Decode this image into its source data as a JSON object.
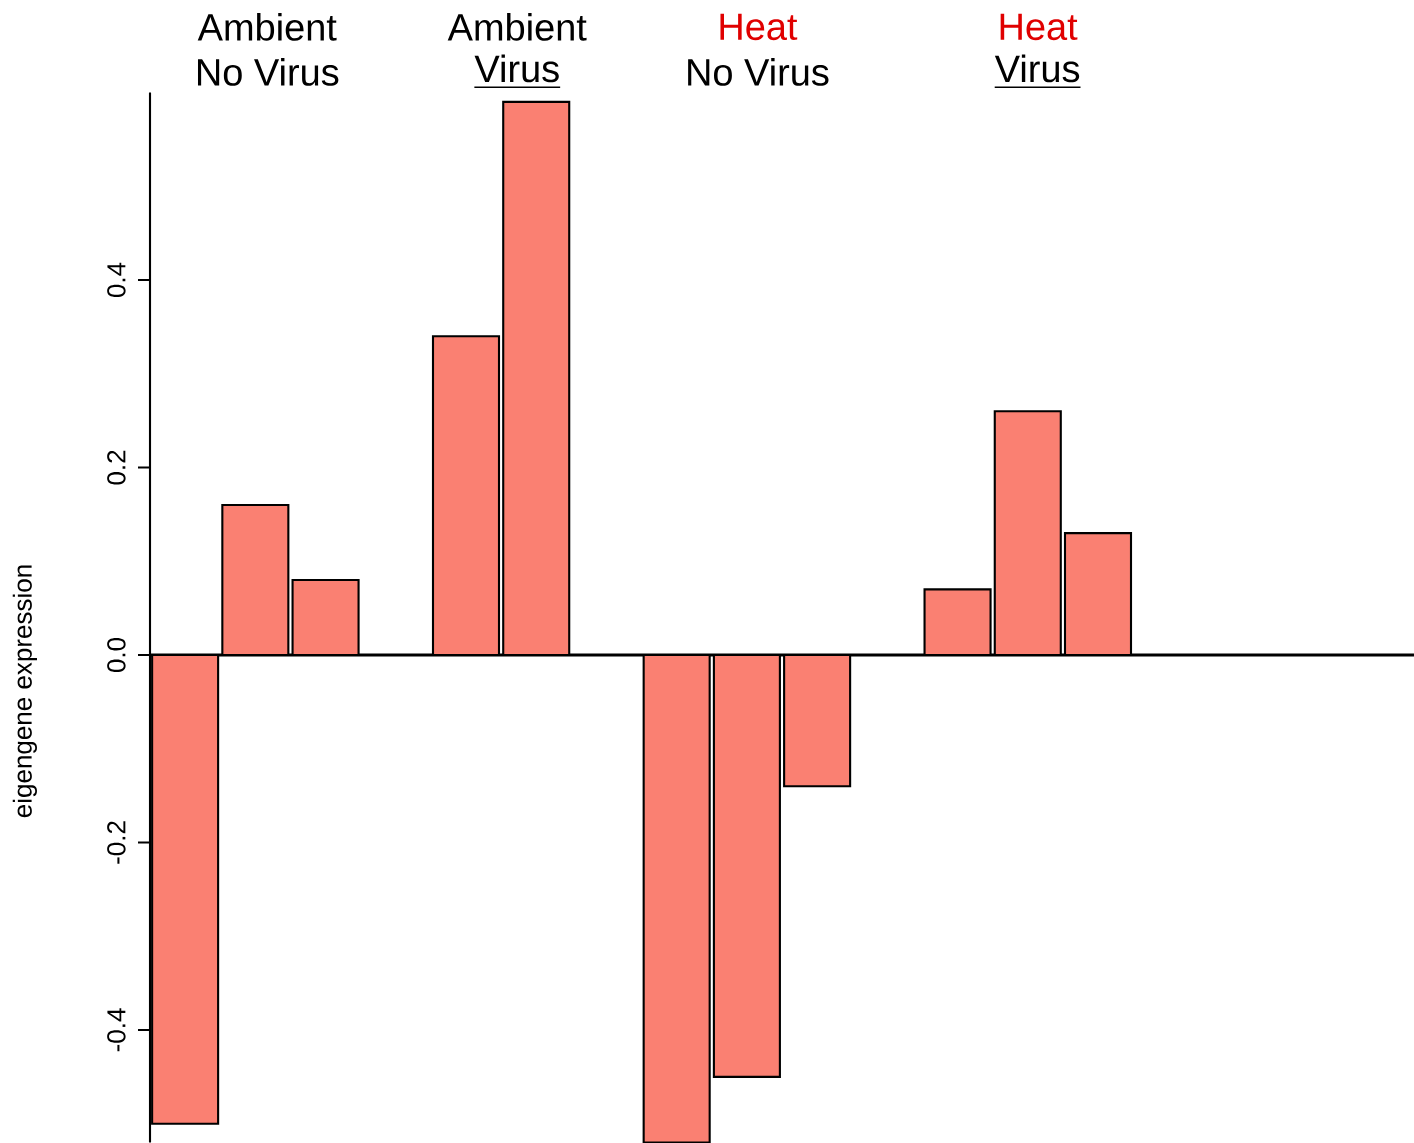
{
  "chart_data": {
    "type": "bar",
    "categories": [
      null,
      null,
      null,
      null,
      null,
      null,
      null,
      null,
      null,
      null,
      null,
      null,
      null,
      null,
      null,
      null,
      null,
      null
    ],
    "values": [
      -0.5,
      0.16,
      0.08,
      null,
      0.34,
      0.59,
      null,
      -0.52,
      -0.45,
      -0.14,
      null,
      0.07,
      0.26,
      0.13,
      null,
      null,
      null,
      null
    ],
    "color": "#fa8072",
    "ylabel": "eigengene expression",
    "annotations": [
      "Ambient",
      "No Virus",
      "Ambient",
      "Virus",
      "Heat",
      "No Virus",
      "Heat",
      "Virus"
    ],
    "ylim": [
      -0.52,
      0.6
    ],
    "yticks": [
      -0.4,
      -0.2,
      {
        "value": 0,
        "label": "0.0"
      },
      0.2,
      0.4
    ],
    "ref_lines": [
      {
        "axis": "y",
        "value": 0
      }
    ],
    "tick_labels": "y"
  }
}
